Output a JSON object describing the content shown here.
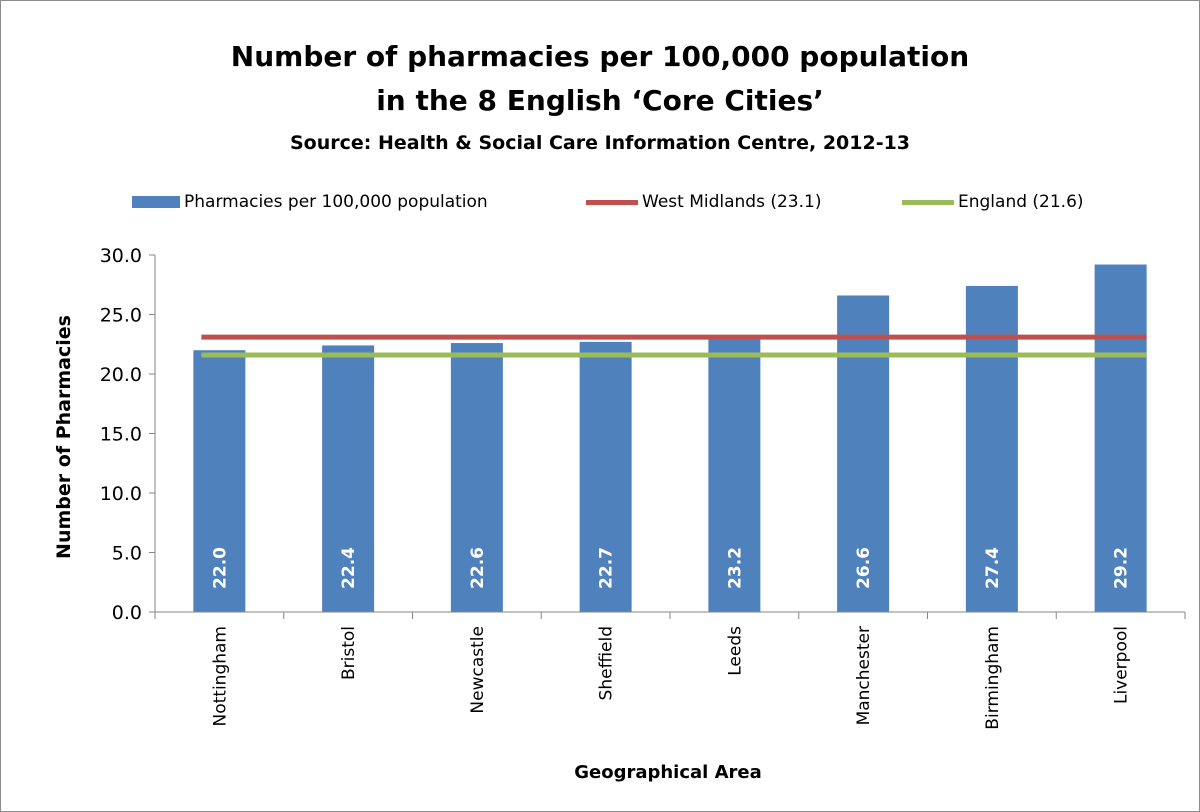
{
  "chart_data": {
    "type": "bar",
    "title": "Number of pharmacies per 100,000 population",
    "title_line2": "in the 8 English ‘Core Cities’",
    "subtitle": "Source: Health & Social Care Information Centre, 2012-13",
    "xlabel": "Geographical Area",
    "ylabel": "Number of Pharmacies",
    "ylim": [
      0,
      30
    ],
    "yticks": [
      "0.0",
      "5.0",
      "10.0",
      "15.0",
      "20.0",
      "25.0",
      "30.0"
    ],
    "categories": [
      "Nottingham",
      "Bristol",
      "Newcastle",
      "Sheffield",
      "Leeds",
      "Manchester",
      "Birmingham",
      "Liverpool"
    ],
    "series": [
      {
        "name": "Pharmacies per 100,000 population",
        "values": [
          22.0,
          22.4,
          22.6,
          22.7,
          23.2,
          26.6,
          27.4,
          29.2
        ],
        "labels": [
          "22.0",
          "22.4",
          "22.6",
          "22.7",
          "23.2",
          "26.6",
          "27.4",
          "29.2"
        ],
        "color": "#4f81bd"
      },
      {
        "name": "West Midlands (23.1)",
        "type": "line",
        "value": 23.1,
        "color": "#c0504d"
      },
      {
        "name": "England (21.6)",
        "type": "line",
        "value": 21.6,
        "color": "#9bbb59"
      }
    ],
    "legend_position": "top",
    "grid": false
  }
}
